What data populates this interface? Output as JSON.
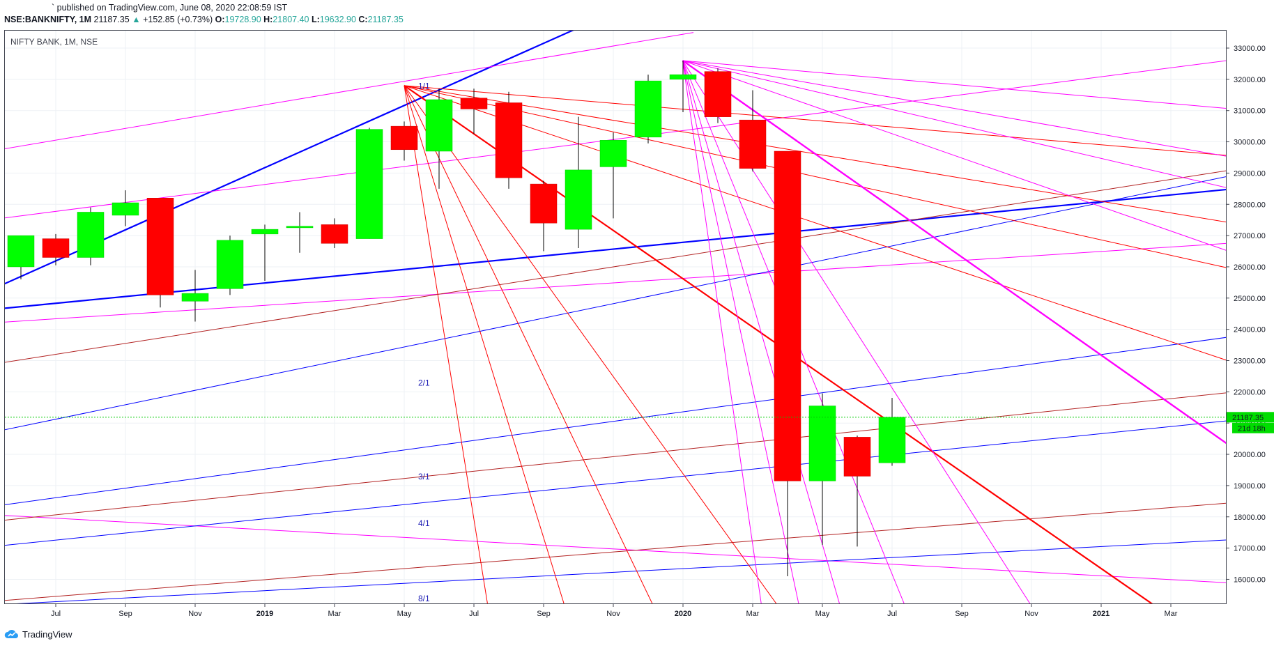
{
  "header": {
    "published": "` published on TradingView.com, June 08, 2020 22:08:59 IST",
    "symbol": "NSE:BANKNIFTY, 1M",
    "last": "21187.35",
    "change": "+152.85 (+0.73%)",
    "open_label": "O:",
    "open": "19728.90",
    "high_label": "H:",
    "high": "21807.40",
    "low_label": "L:",
    "low": "19632.90",
    "close_label": "C:",
    "close": "21187.35"
  },
  "legend": "NIFTY BANK, 1M, NSE",
  "last_price_tag": "21187.35",
  "countdown_tag": "21d 18h",
  "footer": {
    "brand": "TradingView"
  },
  "colors": {
    "up": "#00ff00",
    "down": "#ff0000",
    "wick": "#000000",
    "blue": "#0000ff",
    "red": "#ff0000",
    "brown": "#b22222",
    "magenta": "#ff00ff",
    "lastline": "#00cc00",
    "grid": "#eef1f5"
  },
  "chart_data": {
    "type": "candlestick",
    "y_ticks": [
      "33000.00",
      "32000.00",
      "31000.00",
      "30000.00",
      "29000.00",
      "28000.00",
      "27000.00",
      "26000.00",
      "25000.00",
      "24000.00",
      "23000.00",
      "22000.00",
      "21000.00",
      "20000.00",
      "19000.00",
      "18000.00",
      "17000.00",
      "16000.00"
    ],
    "x_ticks": [
      {
        "label": "Jul",
        "i": 1
      },
      {
        "label": "Sep",
        "i": 3
      },
      {
        "label": "Nov",
        "i": 5
      },
      {
        "label": "2019",
        "i": 7
      },
      {
        "label": "Mar",
        "i": 9
      },
      {
        "label": "May",
        "i": 11
      },
      {
        "label": "Jul",
        "i": 13
      },
      {
        "label": "Sep",
        "i": 15
      },
      {
        "label": "Nov",
        "i": 17
      },
      {
        "label": "2020",
        "i": 19
      },
      {
        "label": "Mar",
        "i": 21
      },
      {
        "label": "May",
        "i": 23
      },
      {
        "label": "Jul",
        "i": 25
      },
      {
        "label": "Sep",
        "i": 27
      },
      {
        "label": "Nov",
        "i": 29
      },
      {
        "label": "2021",
        "i": 31
      },
      {
        "label": "Mar",
        "i": 33
      }
    ],
    "candles": [
      {
        "o": 26000,
        "h": 27000,
        "l": 25600,
        "c": 27000
      },
      {
        "o": 26900,
        "h": 27050,
        "l": 26050,
        "c": 26300
      },
      {
        "o": 26300,
        "h": 27900,
        "l": 26050,
        "c": 27750
      },
      {
        "o": 27650,
        "h": 28450,
        "l": 27300,
        "c": 28050
      },
      {
        "o": 28200,
        "h": 28200,
        "l": 24700,
        "c": 25100
      },
      {
        "o": 24900,
        "h": 25900,
        "l": 24250,
        "c": 25150
      },
      {
        "o": 25300,
        "h": 27000,
        "l": 25100,
        "c": 26850
      },
      {
        "o": 27050,
        "h": 27350,
        "l": 25550,
        "c": 27200
      },
      {
        "o": 27250,
        "h": 27750,
        "l": 26450,
        "c": 27300
      },
      {
        "o": 27350,
        "h": 27550,
        "l": 26600,
        "c": 26750
      },
      {
        "o": 26900,
        "h": 30450,
        "l": 26900,
        "c": 30400
      },
      {
        "o": 30500,
        "h": 30650,
        "l": 29400,
        "c": 29750
      },
      {
        "o": 29700,
        "h": 31700,
        "l": 28500,
        "c": 31350
      },
      {
        "o": 31400,
        "h": 31700,
        "l": 30250,
        "c": 31050
      },
      {
        "o": 31250,
        "h": 31600,
        "l": 28500,
        "c": 28850
      },
      {
        "o": 28650,
        "h": 28750,
        "l": 26500,
        "c": 27400
      },
      {
        "o": 27200,
        "h": 30800,
        "l": 26600,
        "c": 29100
      },
      {
        "o": 29200,
        "h": 30300,
        "l": 27550,
        "c": 30050
      },
      {
        "o": 30150,
        "h": 32150,
        "l": 29950,
        "c": 31950
      },
      {
        "o": 32000,
        "h": 32600,
        "l": 30950,
        "c": 32150
      },
      {
        "o": 32250,
        "h": 32350,
        "l": 30600,
        "c": 30800
      },
      {
        "o": 30700,
        "h": 31650,
        "l": 29050,
        "c": 29150
      },
      {
        "o": 29700,
        "h": 29700,
        "l": 16100,
        "c": 19150
      },
      {
        "o": 19150,
        "h": 21950,
        "l": 17100,
        "c": 21550
      },
      {
        "o": 20550,
        "h": 20600,
        "l": 17050,
        "c": 19300
      },
      {
        "o": 19728.9,
        "h": 21807.4,
        "l": 19632.9,
        "c": 21187.35
      }
    ],
    "last_price": 21187.35,
    "fan_labels": [
      {
        "text": "1/1",
        "i": 11.7,
        "p": 31700
      },
      {
        "text": "2/1",
        "i": 11.7,
        "p": 22200
      },
      {
        "text": "3/1",
        "i": 11.7,
        "p": 19200
      },
      {
        "text": "4/1",
        "i": 11.7,
        "p": 17700
      },
      {
        "text": "8/1",
        "i": 11.7,
        "p": 15300
      }
    ],
    "lines": [
      {
        "c": "blue",
        "w": 2.2,
        "a": [
          -3,
          24200
        ],
        "b": [
          15.9,
          33600
        ]
      },
      {
        "c": "blue",
        "w": 2.2,
        "a": [
          -3,
          24400
        ],
        "b": [
          35.3,
          28550
        ]
      },
      {
        "c": "magenta",
        "w": 1,
        "a": [
          -3,
          29300
        ],
        "b": [
          19.3,
          33500
        ]
      },
      {
        "c": "magenta",
        "w": 1,
        "a": [
          -3,
          27200
        ],
        "b": [
          35.3,
          32700
        ]
      },
      {
        "c": "magenta",
        "w": 1,
        "a": [
          -3,
          24050
        ],
        "b": [
          35.3,
          26800
        ]
      },
      {
        "c": "magenta",
        "w": 1,
        "a": [
          -3,
          18200
        ],
        "b": [
          35.3,
          15850
        ]
      },
      {
        "c": "magenta",
        "w": 1,
        "a": [
          -3,
          15600
        ],
        "b": [
          5,
          14400
        ]
      },
      {
        "c": "brown",
        "w": 1,
        "a": [
          -3,
          22500
        ],
        "b": [
          35.3,
          29200
        ]
      },
      {
        "c": "brown",
        "w": 1,
        "a": [
          -3,
          17600
        ],
        "b": [
          35.3,
          22050
        ]
      },
      {
        "c": "brown",
        "w": 1,
        "a": [
          -3,
          15100
        ],
        "b": [
          35.3,
          18500
        ]
      },
      {
        "c": "blue",
        "w": 1,
        "a": [
          -3,
          20200
        ],
        "b": [
          35.3,
          29050
        ]
      },
      {
        "c": "blue",
        "w": 1,
        "a": [
          -3,
          18000
        ],
        "b": [
          35.3,
          23850
        ]
      },
      {
        "c": "blue",
        "w": 1,
        "a": [
          -3,
          16800
        ],
        "b": [
          35.3,
          21150
        ]
      },
      {
        "c": "blue",
        "w": 1,
        "a": [
          -3,
          15050
        ],
        "b": [
          35.3,
          17300
        ]
      },
      {
        "c": "red",
        "w": 1,
        "a": [
          11,
          31800
        ],
        "b": [
          35.3,
          29500
        ]
      },
      {
        "c": "red",
        "w": 1,
        "a": [
          11,
          31800
        ],
        "b": [
          35.3,
          27300
        ]
      },
      {
        "c": "red",
        "w": 1,
        "a": [
          11,
          31800
        ],
        "b": [
          35.3,
          25800
        ]
      },
      {
        "c": "red",
        "w": 1,
        "a": [
          11,
          31800
        ],
        "b": [
          35.3,
          22750
        ]
      },
      {
        "c": "red",
        "w": 2.2,
        "a": [
          11,
          31800
        ],
        "b": [
          33,
          14800
        ]
      },
      {
        "c": "red",
        "w": 1,
        "a": [
          11,
          31800
        ],
        "b": [
          21.95,
          14800
        ]
      },
      {
        "c": "red",
        "w": 1,
        "a": [
          11,
          31800
        ],
        "b": [
          18.3,
          14800
        ]
      },
      {
        "c": "red",
        "w": 1,
        "a": [
          11,
          31800
        ],
        "b": [
          15.7,
          14800
        ]
      },
      {
        "c": "red",
        "w": 1,
        "a": [
          11,
          31800
        ],
        "b": [
          13.45,
          14800
        ]
      },
      {
        "c": "magenta",
        "w": 1,
        "a": [
          18.99,
          32600
        ],
        "b": [
          35.3,
          31000
        ]
      },
      {
        "c": "magenta",
        "w": 1,
        "a": [
          18.99,
          32600
        ],
        "b": [
          35.3,
          29400
        ]
      },
      {
        "c": "magenta",
        "w": 1,
        "a": [
          18.99,
          32600
        ],
        "b": [
          35.3,
          28350
        ]
      },
      {
        "c": "magenta",
        "w": 1,
        "a": [
          18.99,
          32600
        ],
        "b": [
          35.3,
          26250
        ]
      },
      {
        "c": "magenta",
        "w": 2.4,
        "a": [
          18.99,
          32600
        ],
        "b": [
          35.3,
          19800
        ]
      },
      {
        "c": "magenta",
        "w": 1,
        "a": [
          18.99,
          32600
        ],
        "b": [
          29.2,
          14800
        ]
      },
      {
        "c": "magenta",
        "w": 1,
        "a": [
          18.99,
          32600
        ],
        "b": [
          25.5,
          14800
        ]
      },
      {
        "c": "magenta",
        "w": 1,
        "a": [
          18.99,
          32600
        ],
        "b": [
          23.6,
          14800
        ]
      },
      {
        "c": "magenta",
        "w": 1,
        "a": [
          18.99,
          32600
        ],
        "b": [
          22.4,
          14800
        ]
      },
      {
        "c": "magenta",
        "w": 1,
        "a": [
          18.99,
          32600
        ],
        "b": [
          21.3,
          14800
        ]
      }
    ]
  }
}
